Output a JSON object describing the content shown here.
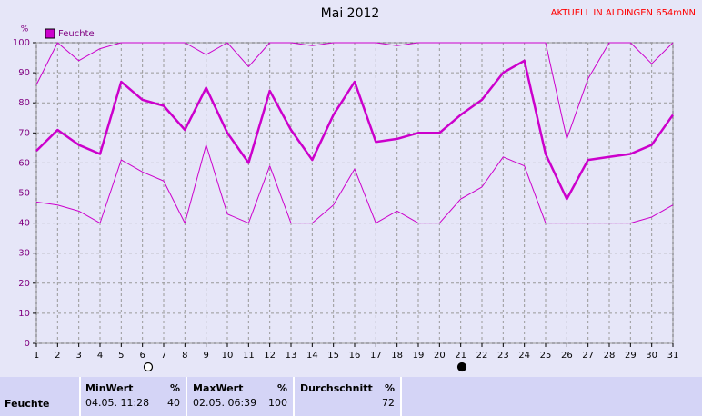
{
  "chart_data": {
    "type": "line",
    "title": "Mai 2012",
    "subtitle": "AKTUELL IN ALDINGEN 654mNN",
    "y_label": "%",
    "x": [
      1,
      2,
      3,
      4,
      5,
      6,
      7,
      8,
      9,
      10,
      11,
      12,
      13,
      14,
      15,
      16,
      17,
      18,
      19,
      20,
      21,
      22,
      23,
      24,
      25,
      26,
      27,
      28,
      29,
      30,
      31
    ],
    "xlim": [
      1,
      31
    ],
    "xticks": [
      1,
      2,
      3,
      4,
      5,
      6,
      7,
      8,
      9,
      10,
      11,
      12,
      13,
      14,
      15,
      16,
      17,
      18,
      19,
      20,
      21,
      22,
      23,
      24,
      25,
      26,
      27,
      28,
      29,
      30,
      31
    ],
    "ylim": [
      0,
      100
    ],
    "yticks": [
      0,
      10,
      20,
      30,
      40,
      50,
      60,
      70,
      80,
      90,
      100
    ],
    "grid": true,
    "legend": "top-left",
    "series": [
      {
        "name": "Feuchte",
        "color": "#cc00cc",
        "line_width": 2.5,
        "values": [
          64,
          71,
          66,
          63,
          87,
          81,
          79,
          71,
          85,
          70,
          60,
          84,
          71,
          61,
          76,
          87,
          67,
          68,
          70,
          70,
          76,
          81,
          90,
          94,
          63,
          48,
          61,
          62,
          63,
          66,
          76
        ]
      },
      {
        "color": "#cc00cc",
        "line_width": 1,
        "values": [
          86,
          100,
          94,
          98,
          100,
          100,
          100,
          100,
          96,
          100,
          92,
          100,
          100,
          99,
          100,
          100,
          100,
          99,
          100,
          100,
          100,
          100,
          100,
          100,
          100,
          68,
          88,
          100,
          100,
          93,
          100
        ]
      },
      {
        "color": "#cc00cc",
        "line_width": 1,
        "values": [
          47,
          46,
          44,
          40,
          61,
          57,
          54,
          40,
          66,
          43,
          40,
          59,
          40,
          40,
          46,
          58,
          40,
          44,
          40,
          40,
          48,
          52,
          62,
          59,
          40,
          40,
          40,
          40,
          40,
          42,
          46
        ]
      }
    ]
  },
  "table": {
    "header": [
      "MinWert",
      "%",
      "MaxWert",
      "%",
      "Durchschnitt",
      "%"
    ],
    "rows": [
      [
        "Feuchte",
        "04.05. 11:28",
        "40",
        "02.05. 06:39",
        "100",
        "72"
      ]
    ]
  }
}
